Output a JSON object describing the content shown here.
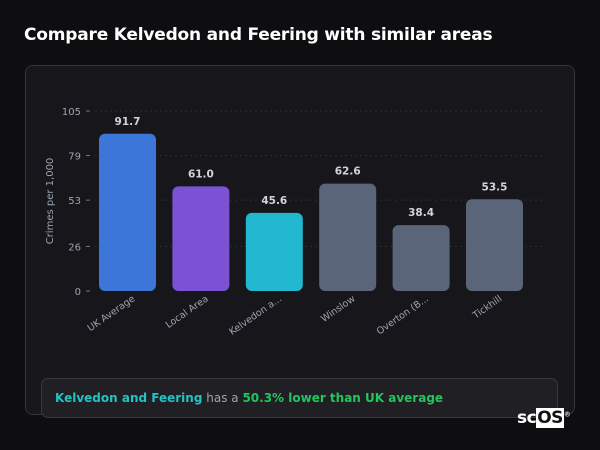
{
  "title": "Compare Kelvedon and Feering with similar areas",
  "chart_data": {
    "type": "bar",
    "categories": [
      "UK Average",
      "Local Area",
      "Kelvedon a...",
      "Winslow",
      "Overton (B...",
      "Tickhill"
    ],
    "values": [
      91.7,
      61.0,
      45.6,
      62.6,
      38.4,
      53.5
    ],
    "value_labels": [
      "91.7",
      "61.0",
      "45.6",
      "62.6",
      "38.4",
      "53.5"
    ],
    "colors": [
      "#3b76d8",
      "#7b52d4",
      "#22b8cf",
      "#5b6579",
      "#5b6579",
      "#5b6579"
    ],
    "ylabel": "Crimes per 1,000",
    "xlabel": "",
    "yticks": [
      0,
      26,
      53,
      79,
      105
    ],
    "ylim": [
      0,
      105
    ],
    "grid": true,
    "legend": "none"
  },
  "insight": {
    "area": "Kelvedon and Feering",
    "middle": " has a ",
    "result": "50.3% lower than UK average"
  },
  "logo": {
    "text_a": "sc",
    "text_b": "OS",
    "mark": "®"
  }
}
